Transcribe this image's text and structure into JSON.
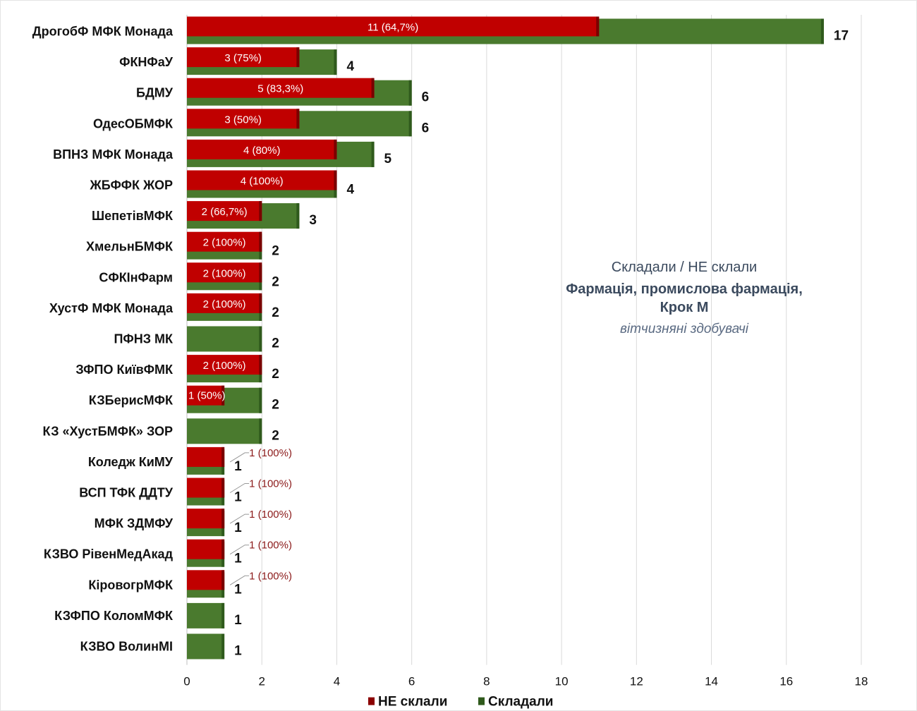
{
  "chart_data": {
    "type": "bar",
    "orientation": "horizontal",
    "categories": [
      "ДрогобФ  МФК Монада",
      "ФКНФаУ",
      "БДМУ",
      "ОдесОБМФК",
      "ВПНЗ  МФК Монада",
      "ЖБФФК ЖОР",
      "ШепетівМФК",
      "ХмельнБМФК",
      "СФКІнФарм",
      "ХустФ МФК Монада",
      "ПФНЗ МК",
      "ЗФПО КиївФМК",
      "КЗБерисМФК",
      "КЗ «ХустБМФК» ЗОР",
      "Коледж КиМУ",
      "ВСП  ТФК ДДТУ",
      "МФК ЗДМФУ",
      "КЗВО РівенМедАкад",
      "КіровогрМФК",
      "КЗФПО КоломМФК",
      "КЗВО ВолинМІ"
    ],
    "series": [
      {
        "name": "НЕ склали",
        "color": "#c00000",
        "values": [
          11,
          3,
          5,
          3,
          4,
          4,
          2,
          2,
          2,
          2,
          0,
          2,
          1,
          0,
          1,
          1,
          1,
          1,
          1,
          0,
          0
        ],
        "labels": [
          "11 (64,7%)",
          "3 (75%)",
          "5  (83,3%)",
          "3 (50%)",
          "4 (80%)",
          "4 (100%)",
          "2 (66,7%)",
          "2 (100%)",
          "2 (100%)",
          "2 (100%)",
          "",
          "2 (100%)",
          "1 (50%)",
          "",
          "1 (100%)",
          "1 (100%)",
          "1 (100%)",
          "1 (100%)",
          "1 (100%)",
          "",
          ""
        ]
      },
      {
        "name": "Складали",
        "color": "#4a7a2e",
        "values": [
          17,
          4,
          6,
          6,
          5,
          4,
          3,
          2,
          2,
          2,
          2,
          2,
          2,
          2,
          1,
          1,
          1,
          1,
          1,
          1,
          1
        ],
        "labels": [
          "17",
          "4",
          "6",
          "6",
          "5",
          "4",
          "3",
          "2",
          "2",
          "2",
          "2",
          "2",
          "2",
          "2",
          "1",
          "1",
          "1",
          "1",
          "1",
          "1",
          "1"
        ]
      }
    ],
    "xlim": [
      0,
      18
    ],
    "xticks": [
      "0",
      "2",
      "4",
      "6",
      "8",
      "10",
      "12",
      "14",
      "16",
      "18"
    ],
    "grid": "vertical",
    "legend_position": "bottom",
    "annotation": {
      "line1": "Складали / НЕ склали",
      "line2": "Фармація, промислова фармація,",
      "line3": "Крок М",
      "line4": "вітчизняні здобувачі"
    }
  }
}
